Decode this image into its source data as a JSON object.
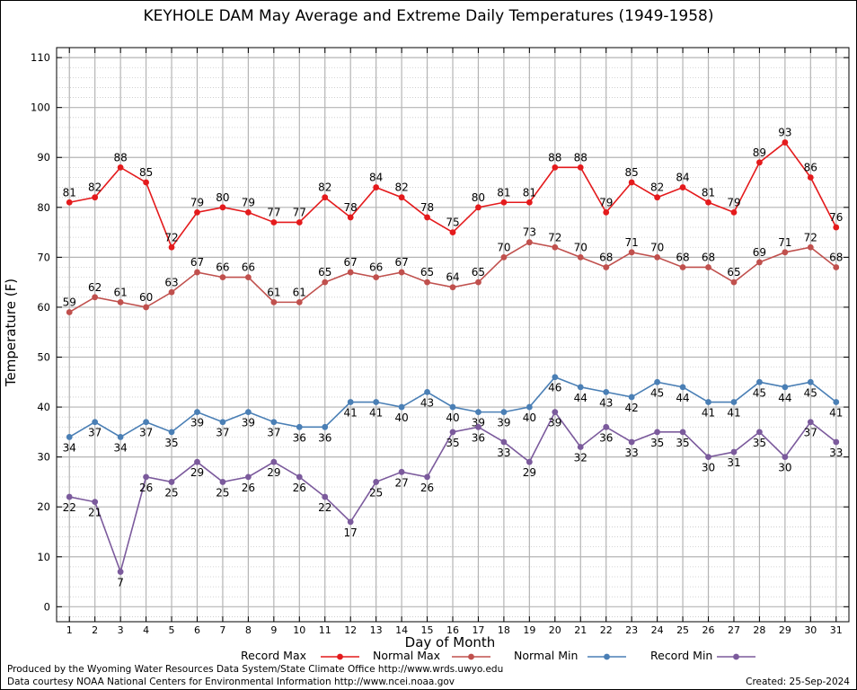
{
  "chart_data": {
    "type": "line",
    "title": "KEYHOLE DAM May Average and Extreme Daily Temperatures (1949-1958)",
    "xlabel": "Day of Month",
    "ylabel": "Temperature (F)",
    "xlim": [
      0.5,
      31.5
    ],
    "ylim": [
      -3,
      112
    ],
    "x": [
      1,
      2,
      3,
      4,
      5,
      6,
      7,
      8,
      9,
      10,
      11,
      12,
      13,
      14,
      15,
      16,
      17,
      18,
      19,
      20,
      21,
      22,
      23,
      24,
      25,
      26,
      27,
      28,
      29,
      30,
      31
    ],
    "x_ticks": [
      "1",
      "2",
      "3",
      "4",
      "5",
      "6",
      "7",
      "8",
      "9",
      "10",
      "11",
      "12",
      "13",
      "14",
      "15",
      "16",
      "17",
      "18",
      "19",
      "20",
      "21",
      "22",
      "23",
      "24",
      "25",
      "26",
      "27",
      "28",
      "29",
      "30",
      "31"
    ],
    "y_ticks": [
      0,
      10,
      20,
      30,
      40,
      50,
      60,
      70,
      80,
      90,
      100,
      110
    ],
    "grid": true,
    "legend_placement": "bottom",
    "series": [
      {
        "name": "Record Max",
        "color": "#e41a1c",
        "label_pos": "above",
        "values": [
          81,
          82,
          88,
          85,
          72,
          79,
          80,
          79,
          77,
          77,
          82,
          78,
          84,
          82,
          78,
          75,
          80,
          81,
          81,
          88,
          88,
          79,
          85,
          82,
          84,
          81,
          79,
          89,
          93,
          86,
          76
        ]
      },
      {
        "name": "Normal Max",
        "color": "#c0504d",
        "label_pos": "above",
        "values": [
          59,
          62,
          61,
          60,
          63,
          67,
          66,
          66,
          61,
          61,
          65,
          67,
          66,
          67,
          65,
          64,
          65,
          70,
          73,
          72,
          70,
          68,
          71,
          70,
          68,
          68,
          65,
          69,
          71,
          72,
          68
        ]
      },
      {
        "name": "Normal Min",
        "color": "#4a7fb5",
        "label_pos": "below",
        "values": [
          34,
          37,
          34,
          37,
          35,
          39,
          37,
          39,
          37,
          36,
          36,
          41,
          41,
          40,
          43,
          40,
          39,
          39,
          40,
          46,
          44,
          43,
          42,
          45,
          44,
          41,
          41,
          45,
          44,
          45,
          41
        ]
      },
      {
        "name": "Record Min",
        "color": "#7b5a9c",
        "label_pos": "below",
        "values": [
          22,
          21,
          7,
          26,
          25,
          29,
          25,
          26,
          29,
          26,
          22,
          17,
          25,
          27,
          26,
          35,
          36,
          33,
          29,
          39,
          32,
          36,
          33,
          35,
          35,
          30,
          31,
          35,
          30,
          37,
          33
        ]
      }
    ]
  },
  "footer": {
    "line1": "Produced by the Wyoming Water Resources Data System/State Climate Office http://www.wrds.uwyo.edu",
    "line2": "Data courtesy NOAA National Centers for Environmental Information http://www.ncei.noaa.gov",
    "created": "Created:  25-Sep-2024"
  }
}
